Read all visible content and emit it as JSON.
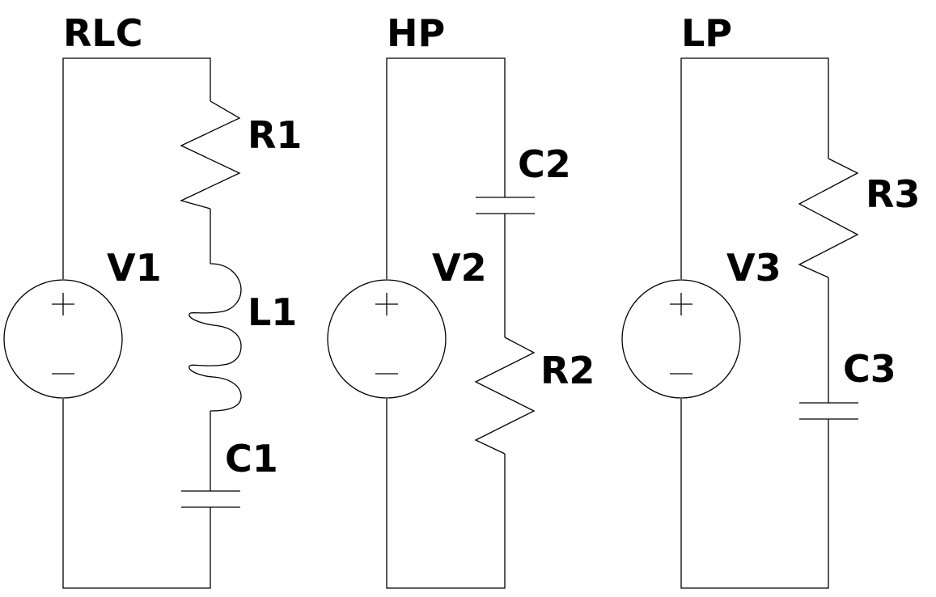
{
  "circuits": [
    {
      "title": "RLC",
      "source": "V1",
      "components": {
        "resistor": "R1",
        "inductor": "L1",
        "capacitor": "C1"
      }
    },
    {
      "title": "HP",
      "source": "V2",
      "components": {
        "capacitor": "C2",
        "resistor": "R2"
      }
    },
    {
      "title": "LP",
      "source": "V3",
      "components": {
        "resistor": "R3",
        "capacitor": "C3"
      }
    }
  ],
  "colors": {
    "line": "#000000",
    "background": "#ffffff"
  },
  "source_symbol": {
    "plus": "+",
    "minus": "−"
  }
}
